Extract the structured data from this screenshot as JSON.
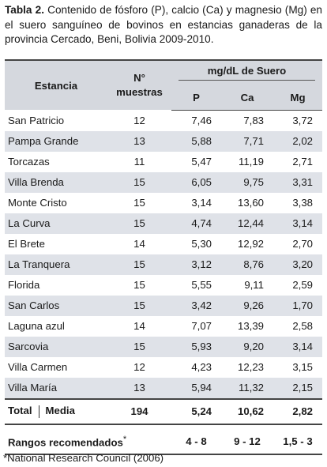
{
  "caption": {
    "label": "Tabla 2.",
    "text": " Contenido de fósforo (P), calcio (Ca) y magnesio (Mg) en el suero sanguíneo de bovinos en estancias ganaderas de la provincia Cercado, Beni, Bolivia 2009-2010."
  },
  "headers": {
    "estancia": "Estancia",
    "n_line1": "N°",
    "n_line2": "muestras",
    "group": "mg/dL de Suero",
    "p": "P",
    "ca": "Ca",
    "mg": "Mg"
  },
  "rows": [
    {
      "name": "San Patricio",
      "n": "12",
      "p": "7,46",
      "ca": "7,83",
      "mg": "3,72"
    },
    {
      "name": "Pampa Grande",
      "n": "13",
      "p": "5,88",
      "ca": "7,71",
      "mg": "2,02"
    },
    {
      "name": "Torcazas",
      "n": "11",
      "p": "5,47",
      "ca": "11,19",
      "mg": "2,71"
    },
    {
      "name": "Villa Brenda",
      "n": "15",
      "p": "6,05",
      "ca": "9,75",
      "mg": "3,31"
    },
    {
      "name": "Monte Cristo",
      "n": "15",
      "p": "3,14",
      "ca": "13,60",
      "mg": "3,38"
    },
    {
      "name": "La Curva",
      "n": "15",
      "p": "4,74",
      "ca": "12,44",
      "mg": "3,14"
    },
    {
      "name": "El Brete",
      "n": "14",
      "p": "5,30",
      "ca": "12,92",
      "mg": "2,70"
    },
    {
      "name": "La Tranquera",
      "n": "15",
      "p": "3,12",
      "ca": "8,76",
      "mg": "3,20"
    },
    {
      "name": "Florida",
      "n": "15",
      "p": "5,55",
      "ca": "9,11",
      "mg": "2,59"
    },
    {
      "name": "San Carlos",
      "n": "15",
      "p": "3,42",
      "ca": "9,26",
      "mg": "1,70"
    },
    {
      "name": "Laguna azul",
      "n": "14",
      "p": "7,07",
      "ca": "13,39",
      "mg": "2,58"
    },
    {
      "name": "Sarcovia",
      "n": "15",
      "p": "5,93",
      "ca": "9,20",
      "mg": "3,14"
    },
    {
      "name": "Villa Carmen",
      "n": "12",
      "p": "4,23",
      "ca": "12,23",
      "mg": "3,15"
    },
    {
      "name": "Villa María",
      "n": "13",
      "p": "5,94",
      "ca": "11,32",
      "mg": "2,15"
    }
  ],
  "total": {
    "label": "Total",
    "media": "Media",
    "n": "194",
    "p": "5,24",
    "ca": "10,62",
    "mg": "2,82"
  },
  "rangos": {
    "label": "Rangos recomendados",
    "mark": "*",
    "p": "4 - 8",
    "ca": "9 - 12",
    "mg": "1,5 - 3"
  },
  "footnote": "*National Research Council (2006)"
}
